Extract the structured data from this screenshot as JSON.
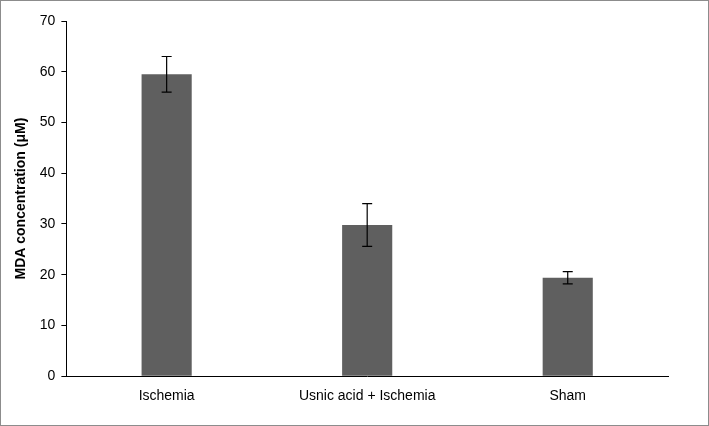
{
  "chart_data": {
    "type": "bar",
    "y_label": "MDA concentration (μM)",
    "categories": [
      "Ischemia",
      "Usnic acid + Ischemia",
      "Sham"
    ],
    "values": [
      59.5,
      29.8,
      19.4
    ],
    "errors": [
      3.5,
      4.2,
      1.2
    ],
    "color": "#5f5f5f",
    "ylim": [
      0,
      70
    ],
    "yticks": [
      0,
      10,
      20,
      30,
      40,
      50,
      60,
      70
    ],
    "grid": false
  }
}
